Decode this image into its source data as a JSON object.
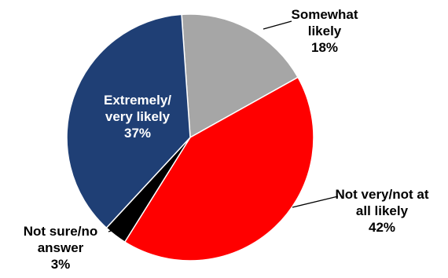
{
  "chart_data": {
    "type": "pie",
    "title": "",
    "unit": "%",
    "start_angle_deg": -4,
    "colors": {
      "Somewhat likely": "#a6a6a6",
      "Not very/not at all likely": "#ff0000",
      "Not sure/no answer": "#000000",
      "Extremely/ very likely": "#1f3f75"
    },
    "slices": [
      {
        "name": "Somewhat likely",
        "value": 18,
        "label_lines": [
          "Somewhat",
          "likely",
          "18%"
        ],
        "label_color": "#000000",
        "label_style": "callout"
      },
      {
        "name": "Not very/not at all likely",
        "value": 42,
        "label_lines": [
          "Not very/not at",
          "all likely",
          "42%"
        ],
        "label_color": "#000000",
        "label_style": "callout"
      },
      {
        "name": "Not sure/no answer",
        "value": 3,
        "label_lines": [
          "Not sure/no",
          "answer",
          "3%"
        ],
        "label_color": "#000000",
        "label_style": "callout"
      },
      {
        "name": "Extremely/ very likely",
        "value": 37,
        "label_lines": [
          "Extremely/",
          "very likely",
          "37%"
        ],
        "label_color": "#ffffff",
        "label_style": "inside"
      }
    ]
  }
}
